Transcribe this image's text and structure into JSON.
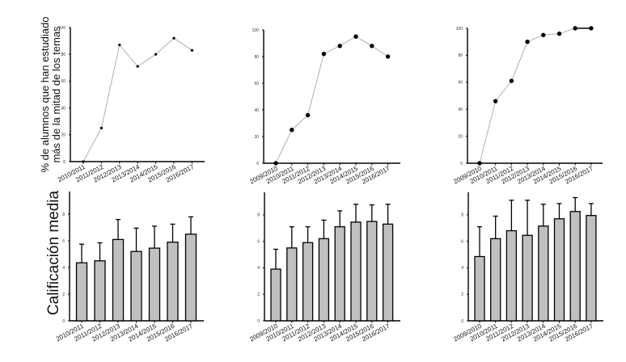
{
  "figure": {
    "top_ylabel_line1": "% de alumnos que han estudiado",
    "top_ylabel_line2": "más de la mitad de los temas",
    "bottom_ylabel": "Calificación media"
  },
  "colors": {
    "bar_fill": "#c0c0c0",
    "line": "#b0b0b0",
    "marker": "#000000"
  },
  "chart_data": [
    {
      "type": "line",
      "panel": "top-left",
      "title": "",
      "xlabel": "",
      "ylabel": "% de alumnos que han estudiado más de la mitad de los temas",
      "categories": [
        "2010/2011",
        "2011/2012",
        "2012/2013",
        "2013/2014",
        "2014/2015",
        "2015/2016",
        "2016/2017"
      ],
      "values": [
        0,
        25,
        87,
        71,
        80,
        92,
        83
      ],
      "ylim": [
        0,
        100
      ],
      "yticks": [
        0,
        20,
        40,
        60,
        80,
        100
      ],
      "marker": "small",
      "grid": false,
      "legend": null
    },
    {
      "type": "line",
      "panel": "top-middle",
      "title": "",
      "xlabel": "",
      "ylabel": "",
      "categories": [
        "2009/2010",
        "2010/2011",
        "2011/2012",
        "2012/2013",
        "2013/2014",
        "2014/2015",
        "2015/2016",
        "2016/2017"
      ],
      "values": [
        0,
        25,
        36,
        82,
        88,
        95,
        88,
        80
      ],
      "ylim": [
        0,
        100
      ],
      "yticks": [
        0,
        20,
        40,
        60,
        80,
        100
      ],
      "marker": "large",
      "grid": false,
      "legend": null
    },
    {
      "type": "line",
      "panel": "top-right",
      "title": "",
      "xlabel": "",
      "ylabel": "",
      "categories": [
        "2009/2010",
        "2010/2011",
        "2011/2012",
        "2012/2013",
        "2013/2014",
        "2014/2015",
        "2015/2016",
        "2016/2017"
      ],
      "values": [
        0,
        46,
        61,
        90,
        95,
        96,
        100,
        100
      ],
      "ylim": [
        0,
        100
      ],
      "yticks": [
        0,
        20,
        40,
        60,
        80,
        100
      ],
      "marker": "large",
      "grid": false,
      "legend": null
    },
    {
      "type": "bar",
      "panel": "bottom-left",
      "title": "",
      "xlabel": "",
      "ylabel": "Calificación media",
      "categories": [
        "2010/2011",
        "2011/2012",
        "2012/2013",
        "2013/2014",
        "2014/2015",
        "2015/2016",
        "2016/2017"
      ],
      "values": [
        4.35,
        4.5,
        6.1,
        5.2,
        5.45,
        5.9,
        6.5
      ],
      "error_upper": [
        5.75,
        5.85,
        7.6,
        6.95,
        7.1,
        7.25,
        7.8
      ],
      "ylim": [
        0,
        9.7
      ],
      "yticks": [
        0,
        2,
        4,
        6,
        8
      ],
      "grid": false,
      "legend": null
    },
    {
      "type": "bar",
      "panel": "bottom-middle",
      "title": "",
      "xlabel": "",
      "ylabel": "",
      "categories": [
        "2009/2010",
        "2010/2011",
        "2011/2012",
        "2012/2013",
        "2013/2014",
        "2014/2015",
        "2015/2016",
        "2016/2017"
      ],
      "values": [
        3.9,
        5.5,
        5.9,
        6.2,
        7.1,
        7.45,
        7.5,
        7.3
      ],
      "error_upper": [
        5.4,
        7.1,
        7.1,
        7.6,
        8.3,
        8.8,
        8.75,
        8.8
      ],
      "ylim": [
        0,
        9.7
      ],
      "yticks": [
        0,
        2,
        4,
        6,
        8
      ],
      "grid": false,
      "legend": null
    },
    {
      "type": "bar",
      "panel": "bottom-right",
      "title": "",
      "xlabel": "",
      "ylabel": "",
      "categories": [
        "2009/2010",
        "2010/2011",
        "2011/2012",
        "2012/2013",
        "2013/2014",
        "2014/2015",
        "2015/2016",
        "2016/2017"
      ],
      "values": [
        4.85,
        6.2,
        6.8,
        6.45,
        7.15,
        7.7,
        8.25,
        7.95
      ],
      "error_upper": [
        7.1,
        7.9,
        9.1,
        9.1,
        8.8,
        8.85,
        9.3,
        8.85
      ],
      "ylim": [
        0,
        9.7
      ],
      "yticks": [
        0,
        2,
        4,
        6,
        8
      ],
      "grid": false,
      "legend": null
    }
  ]
}
